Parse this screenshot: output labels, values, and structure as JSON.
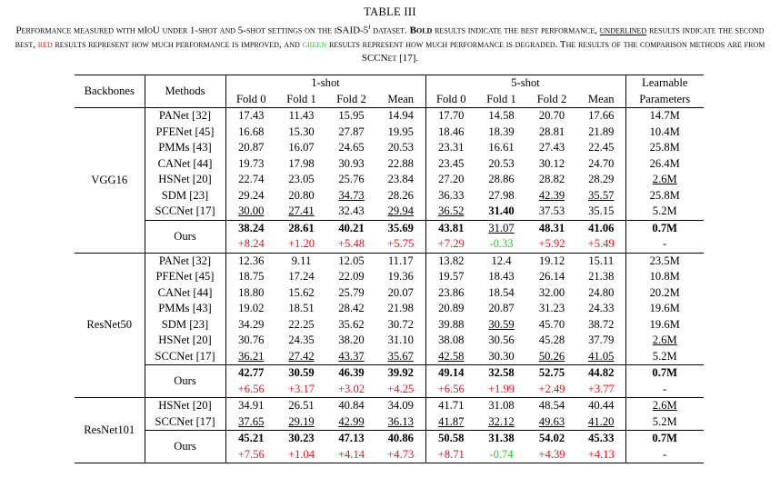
{
  "table_label": "TABLE III",
  "caption": {
    "p1": "Performance measured with mIoU under 1-shot and 5-shot settings on the iSAID-5",
    "sup": "i",
    "p2": " dataset. ",
    "bold_word": "Bold",
    "p3": " results indicate the best performance, ",
    "underlined_word": "underlined",
    "p4": " results indicate the second best, ",
    "red_word": "red",
    "p5": " results represent how much performance is improved, and ",
    "green_word": "green",
    "p6": " results represent how much performance is degraded. The results of the comparison methods are from SCCNet [17]."
  },
  "headers": {
    "backbones": "Backbones",
    "methods": "Methods",
    "one_shot": "1-shot",
    "five_shot": "5-shot",
    "learnable_1": "Learnable",
    "learnable_2": "Parameters",
    "fold0": "Fold 0",
    "fold1": "Fold 1",
    "fold2": "Fold 2",
    "mean": "Mean"
  },
  "sections": [
    {
      "backbone": "VGG16",
      "rows": [
        {
          "method": "PANet [32]",
          "v": [
            "17.43",
            "11.43",
            "15.95",
            "14.94",
            "17.70",
            "14.58",
            "20.70",
            "17.66",
            "14.7M"
          ]
        },
        {
          "method": "PFENet [45]",
          "v": [
            "16.68",
            "15.30",
            "27.87",
            "19.95",
            "18.46",
            "18.39",
            "28.81",
            "21.89",
            "10.4M"
          ]
        },
        {
          "method": "PMMs [43]",
          "v": [
            "20.87",
            "16.07",
            "24.65",
            "20.53",
            "23.31",
            "16.61",
            "27.43",
            "22.45",
            "25.8M"
          ]
        },
        {
          "method": "CANet [44]",
          "v": [
            "19.73",
            "17.98",
            "30.93",
            "22.88",
            "23.45",
            "20.53",
            "30.12",
            "24.70",
            "26.4M"
          ]
        },
        {
          "method": "HSNet [20]",
          "v": [
            "22.74",
            "23.05",
            "25.76",
            "23.84",
            "27.20",
            "28.86",
            "28.82",
            "28.29",
            "2.6M"
          ],
          "u": [
            8
          ]
        },
        {
          "method": "SDM [23]",
          "v": [
            "29.24",
            "20.80",
            "34.73",
            "28.26",
            "36.33",
            "27.98",
            "42.39",
            "35.57",
            "25.8M"
          ],
          "u": [
            2,
            6,
            7
          ]
        },
        {
          "method": "SCCNet [17]",
          "v": [
            "30.00",
            "27.41",
            "32.43",
            "29.94",
            "36.52",
            "31.40",
            "37.53",
            "35.15",
            "5.2M"
          ],
          "u": [
            0,
            1,
            3,
            4
          ],
          "b": [
            5
          ]
        }
      ],
      "ours": {
        "method": "Ours",
        "v": [
          "38.24",
          "28.61",
          "40.21",
          "35.69",
          "43.81",
          "31.07",
          "48.31",
          "41.06",
          "0.7M"
        ],
        "b": [
          0,
          1,
          2,
          3,
          4,
          6,
          7,
          8
        ],
        "u": [
          5
        ]
      },
      "delta": {
        "v": [
          "+8.24",
          "+1.20",
          "+5.48",
          "+5.75",
          "+7.29",
          "-0.33",
          "+5.92",
          "+5.49",
          "-"
        ],
        "c": [
          "red",
          "red",
          "red",
          "red",
          "red",
          "green",
          "red",
          "red",
          ""
        ]
      }
    },
    {
      "backbone": "ResNet50",
      "rows": [
        {
          "method": "PANet [32]",
          "v": [
            "12.36",
            "9.11",
            "12.05",
            "11.17",
            "13.82",
            "12.4",
            "19.12",
            "15.11",
            "23.5M"
          ]
        },
        {
          "method": "PFENet [45]",
          "v": [
            "18.75",
            "17.24",
            "22.09",
            "19.36",
            "19.57",
            "18.43",
            "26.14",
            "21.38",
            "10.8M"
          ]
        },
        {
          "method": "CANet [44]",
          "v": [
            "18.80",
            "15.62",
            "25.79",
            "20.07",
            "23.86",
            "18.54",
            "32.00",
            "24.80",
            "20.2M"
          ]
        },
        {
          "method": "PMMs [43]",
          "v": [
            "19.02",
            "18.51",
            "28.42",
            "21.98",
            "20.89",
            "20.87",
            "31.23",
            "24.33",
            "19.6M"
          ]
        },
        {
          "method": "SDM [23]",
          "v": [
            "34.29",
            "22.25",
            "35.62",
            "30.72",
            "39.88",
            "30.59",
            "45.70",
            "38.72",
            "19.6M"
          ],
          "u": [
            5
          ]
        },
        {
          "method": "HSNet [20]",
          "v": [
            "30.76",
            "24.35",
            "38.20",
            "31.10",
            "38.08",
            "30.56",
            "45.28",
            "37.79",
            "2.6M"
          ],
          "u": [
            8
          ]
        },
        {
          "method": "SCCNet [17]",
          "v": [
            "36.21",
            "27.42",
            "43.37",
            "35.67",
            "42.58",
            "30.30",
            "50.26",
            "41.05",
            "5.2M"
          ],
          "u": [
            0,
            1,
            2,
            3,
            4,
            6,
            7
          ]
        }
      ],
      "ours": {
        "method": "Ours",
        "v": [
          "42.77",
          "30.59",
          "46.39",
          "39.92",
          "49.14",
          "32.58",
          "52.75",
          "44.82",
          "0.7M"
        ],
        "b": [
          0,
          1,
          2,
          3,
          4,
          5,
          6,
          7,
          8
        ]
      },
      "delta": {
        "v": [
          "+6.56",
          "+3.17",
          "+3.02",
          "+4.25",
          "+6.56",
          "+1.99",
          "+2.49",
          "+3.77",
          "-"
        ],
        "c": [
          "red",
          "red",
          "red",
          "red",
          "red",
          "red",
          "red",
          "red",
          ""
        ]
      }
    },
    {
      "backbone": "ResNet101",
      "rows": [
        {
          "method": "HSNet [20]",
          "v": [
            "34.91",
            "26.51",
            "40.84",
            "34.09",
            "41.71",
            "31.08",
            "48.54",
            "40.44",
            "2.6M"
          ],
          "u": [
            8
          ]
        },
        {
          "method": "SCCNet [17]",
          "v": [
            "37.65",
            "29.19",
            "42.99",
            "36.13",
            "41.87",
            "32.12",
            "49.63",
            "41.20",
            "5.2M"
          ],
          "u": [
            0,
            1,
            2,
            3,
            4,
            5,
            6,
            7
          ]
        }
      ],
      "ours": {
        "method": "Ours",
        "v": [
          "45.21",
          "30.23",
          "47.13",
          "40.86",
          "50.58",
          "31.38",
          "54.02",
          "45.33",
          "0.7M"
        ],
        "b": [
          0,
          1,
          2,
          3,
          4,
          5,
          6,
          7,
          8
        ]
      },
      "delta": {
        "v": [
          "+7.56",
          "+1.04",
          "+4.14",
          "+4.73",
          "+8.71",
          "-0.74",
          "+4.39",
          "+4.13",
          "-"
        ],
        "c": [
          "red",
          "red",
          "red",
          "red",
          "red",
          "green",
          "red",
          "red",
          ""
        ]
      }
    }
  ]
}
